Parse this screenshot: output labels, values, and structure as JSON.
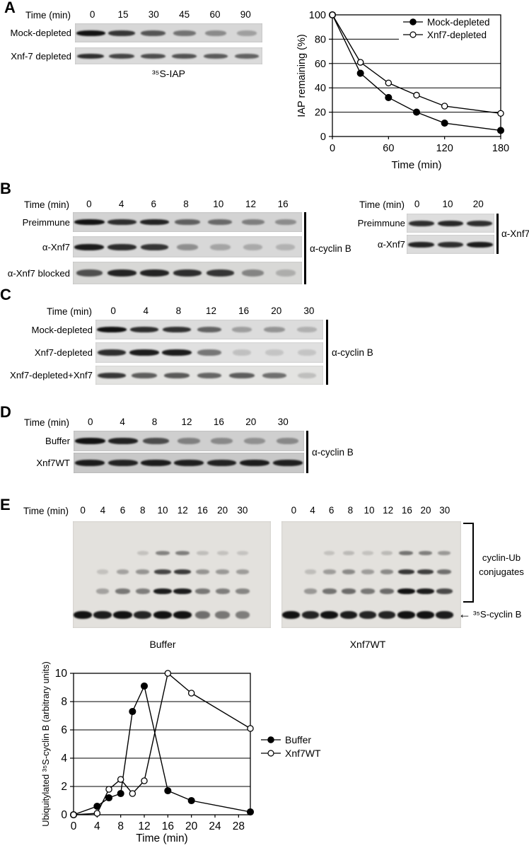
{
  "panel_a": {
    "label": "A",
    "time_header": "Time (min)",
    "lanes": [
      "0",
      "15",
      "30",
      "45",
      "60",
      "90"
    ],
    "rows": [
      {
        "label": "Mock-depleted",
        "bands": [
          1.0,
          0.8,
          0.62,
          0.45,
          0.32,
          0.2
        ]
      },
      {
        "label": "Xnf-7 depleted",
        "bands": [
          0.85,
          0.72,
          0.68,
          0.64,
          0.6,
          0.55
        ]
      }
    ],
    "caption": "³⁵S-IAP"
  },
  "panel_b": {
    "label": "B",
    "left": {
      "time_header": "Time (min)",
      "lanes": [
        "0",
        "4",
        "6",
        "8",
        "10",
        "12",
        "16"
      ],
      "rows": [
        {
          "label": "Preimmune",
          "bands": [
            1.0,
            0.85,
            0.9,
            0.55,
            0.5,
            0.38,
            0.3
          ]
        },
        {
          "label": "α-Xnf7",
          "bands": [
            0.95,
            0.85,
            0.8,
            0.3,
            0.18,
            0.14,
            0.1
          ]
        },
        {
          "label": "α-Xnf7 blocked",
          "bands": [
            0.65,
            0.9,
            0.9,
            0.85,
            0.8,
            0.35,
            0.12
          ]
        }
      ],
      "side_label": "α-cyclin B"
    },
    "right": {
      "time_header": "Time (min)",
      "lanes": [
        "0",
        "10",
        "20"
      ],
      "rows": [
        {
          "label": "Preimmune",
          "bands": [
            0.85,
            0.88,
            0.85
          ]
        },
        {
          "label": "α-Xnf7",
          "bands": [
            0.9,
            0.85,
            0.95
          ]
        }
      ],
      "side_label": "α-Xnf7"
    }
  },
  "panel_c": {
    "label": "C",
    "time_header": "Time (min)",
    "lanes": [
      "0",
      "4",
      "8",
      "12",
      "16",
      "20",
      "30"
    ],
    "rows": [
      {
        "label": "Mock-depleted",
        "bands": [
          1.0,
          0.85,
          0.82,
          0.55,
          0.22,
          0.28,
          0.12
        ]
      },
      {
        "label": "Xnf7-depleted",
        "bands": [
          0.85,
          0.95,
          0.95,
          0.45,
          0.06,
          0.03,
          0.03
        ]
      },
      {
        "label": "Xnf7-depleted+Xnf7",
        "bands": [
          0.8,
          0.6,
          0.62,
          0.55,
          0.6,
          0.5,
          0.08
        ]
      }
    ],
    "side_label": "α-cyclin B"
  },
  "panel_d": {
    "label": "D",
    "time_header": "Time (min)",
    "lanes": [
      "0",
      "4",
      "8",
      "12",
      "16",
      "20",
      "30"
    ],
    "rows": [
      {
        "label": "Buffer",
        "bands": [
          1.0,
          0.9,
          0.65,
          0.35,
          0.3,
          0.25,
          0.3
        ]
      },
      {
        "label": "Xnf7WT",
        "bands": [
          0.95,
          0.9,
          0.95,
          0.92,
          0.9,
          0.95,
          0.92
        ]
      }
    ],
    "side_label": "α-cyclin B"
  },
  "panel_e": {
    "label": "E",
    "time_header": "Time (min)",
    "lanes": [
      "0",
      "4",
      "6",
      "8",
      "10",
      "12",
      "16",
      "20",
      "30"
    ],
    "gels": [
      {
        "caption": "Buffer",
        "rows": {
          "top": [
            0,
            0,
            0,
            0.05,
            0.4,
            0.42,
            0.08,
            0.05,
            0.04
          ],
          "upper": [
            0,
            0.05,
            0.22,
            0.3,
            0.72,
            0.78,
            0.3,
            0.28,
            0.25
          ],
          "lower": [
            0,
            0.22,
            0.45,
            0.42,
            0.95,
            0.95,
            0.45,
            0.42,
            0.38
          ],
          "main": [
            1.0,
            0.95,
            1.0,
            0.9,
            1.0,
            1.0,
            0.5,
            0.45,
            0.42
          ]
        }
      },
      {
        "caption": "Xnf7WT",
        "rows": {
          "top": [
            0,
            0,
            0.05,
            0.1,
            0.06,
            0.1,
            0.48,
            0.42,
            0.28
          ],
          "upper": [
            0,
            0.08,
            0.25,
            0.35,
            0.25,
            0.35,
            0.8,
            0.75,
            0.5
          ],
          "lower": [
            0,
            0.28,
            0.48,
            0.52,
            0.45,
            0.52,
            1.0,
            0.95,
            0.7
          ],
          "main": [
            1.0,
            0.9,
            1.0,
            0.95,
            0.9,
            0.9,
            1.0,
            1.0,
            0.95
          ]
        }
      }
    ],
    "bracket_label_line1": "cyclin-Ub",
    "bracket_label_line2": "conjugates",
    "arrow_icon": "←",
    "arrow_label": "³⁵S-cyclin B"
  },
  "chart_data": [
    {
      "type": "line",
      "title": "",
      "xlabel": "Time (min)",
      "ylabel": "IAP remaining (%)",
      "x": [
        0,
        30,
        60,
        90,
        120,
        180
      ],
      "series": [
        {
          "name": "Mock-depleted",
          "marker": "filled",
          "values": [
            100,
            52,
            32,
            20,
            11,
            5
          ]
        },
        {
          "name": "Xnf7-depleted",
          "marker": "open",
          "values": [
            100,
            61,
            44,
            34,
            25,
            19
          ]
        }
      ],
      "xticks": [
        0,
        60,
        120,
        180
      ],
      "yticks": [
        0,
        20,
        40,
        60,
        80,
        100
      ],
      "xlim": [
        0,
        180
      ],
      "ylim": [
        0,
        100
      ],
      "grid": "horizontal",
      "legend_position": "inside-top-right",
      "line_color": "#000000"
    },
    {
      "type": "line",
      "title": "",
      "xlabel": "Time (min)",
      "ylabel": "Ubiquitylated ³⁵S-cyclin B (arbitrary units)",
      "x": [
        0,
        4,
        6,
        8,
        10,
        12,
        16,
        20,
        30
      ],
      "series": [
        {
          "name": "Buffer",
          "marker": "filled",
          "values": [
            0,
            0.6,
            1.2,
            1.5,
            7.3,
            9.1,
            1.7,
            1.0,
            0.2
          ]
        },
        {
          "name": "Xnf7WT",
          "marker": "open",
          "values": [
            0,
            0.1,
            1.8,
            2.5,
            1.5,
            2.4,
            10,
            8.6,
            6.1
          ]
        }
      ],
      "xticks": [
        0,
        4,
        8,
        12,
        16,
        20,
        24,
        28
      ],
      "yticks": [
        0,
        2,
        4,
        6,
        8,
        10
      ],
      "xlim": [
        0,
        30
      ],
      "ylim": [
        0,
        10
      ],
      "grid": "horizontal",
      "legend_position": "outside-right",
      "line_color": "#000000"
    }
  ]
}
